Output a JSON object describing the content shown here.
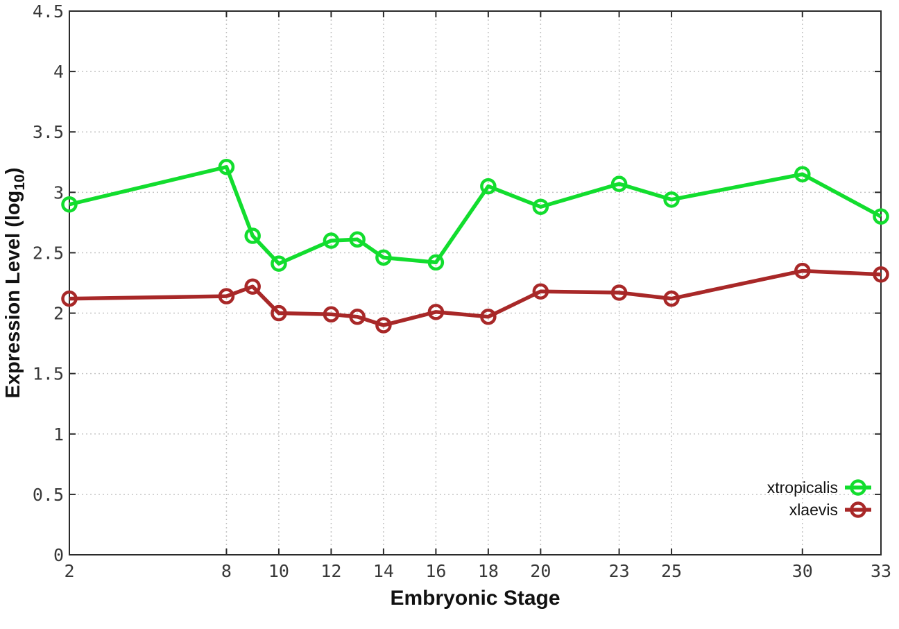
{
  "page": {
    "background": "#ffffff"
  },
  "chart_data": {
    "type": "line",
    "title": "",
    "xlabel": "Embryonic Stage",
    "ylabel": {
      "main": "Expression Level (log",
      "sub": "10",
      "close": ")"
    },
    "xlim": [
      2,
      33
    ],
    "ylim": [
      0,
      4.5
    ],
    "grid": true,
    "x_ticks": {
      "values": [
        2,
        8,
        10,
        12,
        14,
        16,
        18,
        20,
        23,
        25,
        30,
        33
      ],
      "labels": [
        "2",
        "8",
        "10",
        "12",
        "14",
        "16",
        "18",
        "20",
        "23",
        "25",
        "30",
        "33"
      ]
    },
    "y_ticks": {
      "values": [
        0,
        0.5,
        1,
        1.5,
        2,
        2.5,
        3,
        3.5,
        4,
        4.5
      ],
      "labels": [
        "0",
        "0.5",
        "1",
        "1.5",
        "2",
        "2.5",
        "3",
        "3.5",
        "4",
        "4.5"
      ]
    },
    "x": [
      2,
      8,
      9,
      10,
      12,
      13,
      14,
      16,
      18,
      20,
      23,
      25,
      30,
      33
    ],
    "series": [
      {
        "name": "xtropicalis",
        "color": "#12dd2e",
        "values": [
          2.9,
          3.21,
          2.64,
          2.41,
          2.6,
          2.61,
          2.46,
          2.42,
          3.05,
          2.88,
          3.07,
          2.94,
          3.15,
          2.8
        ]
      },
      {
        "name": "xlaevis",
        "color": "#a82828",
        "values": [
          2.12,
          2.14,
          2.22,
          2.0,
          1.99,
          1.97,
          1.9,
          2.01,
          1.97,
          2.18,
          2.17,
          2.12,
          2.35,
          2.32
        ]
      }
    ],
    "legend_position": "inside-right-lower",
    "marker": "open-circle"
  },
  "style": {
    "axis_color": "#2a2a2a",
    "grid_color": "#c4c4c4",
    "tick_text_color": "#383838",
    "label_color": "#111111"
  }
}
